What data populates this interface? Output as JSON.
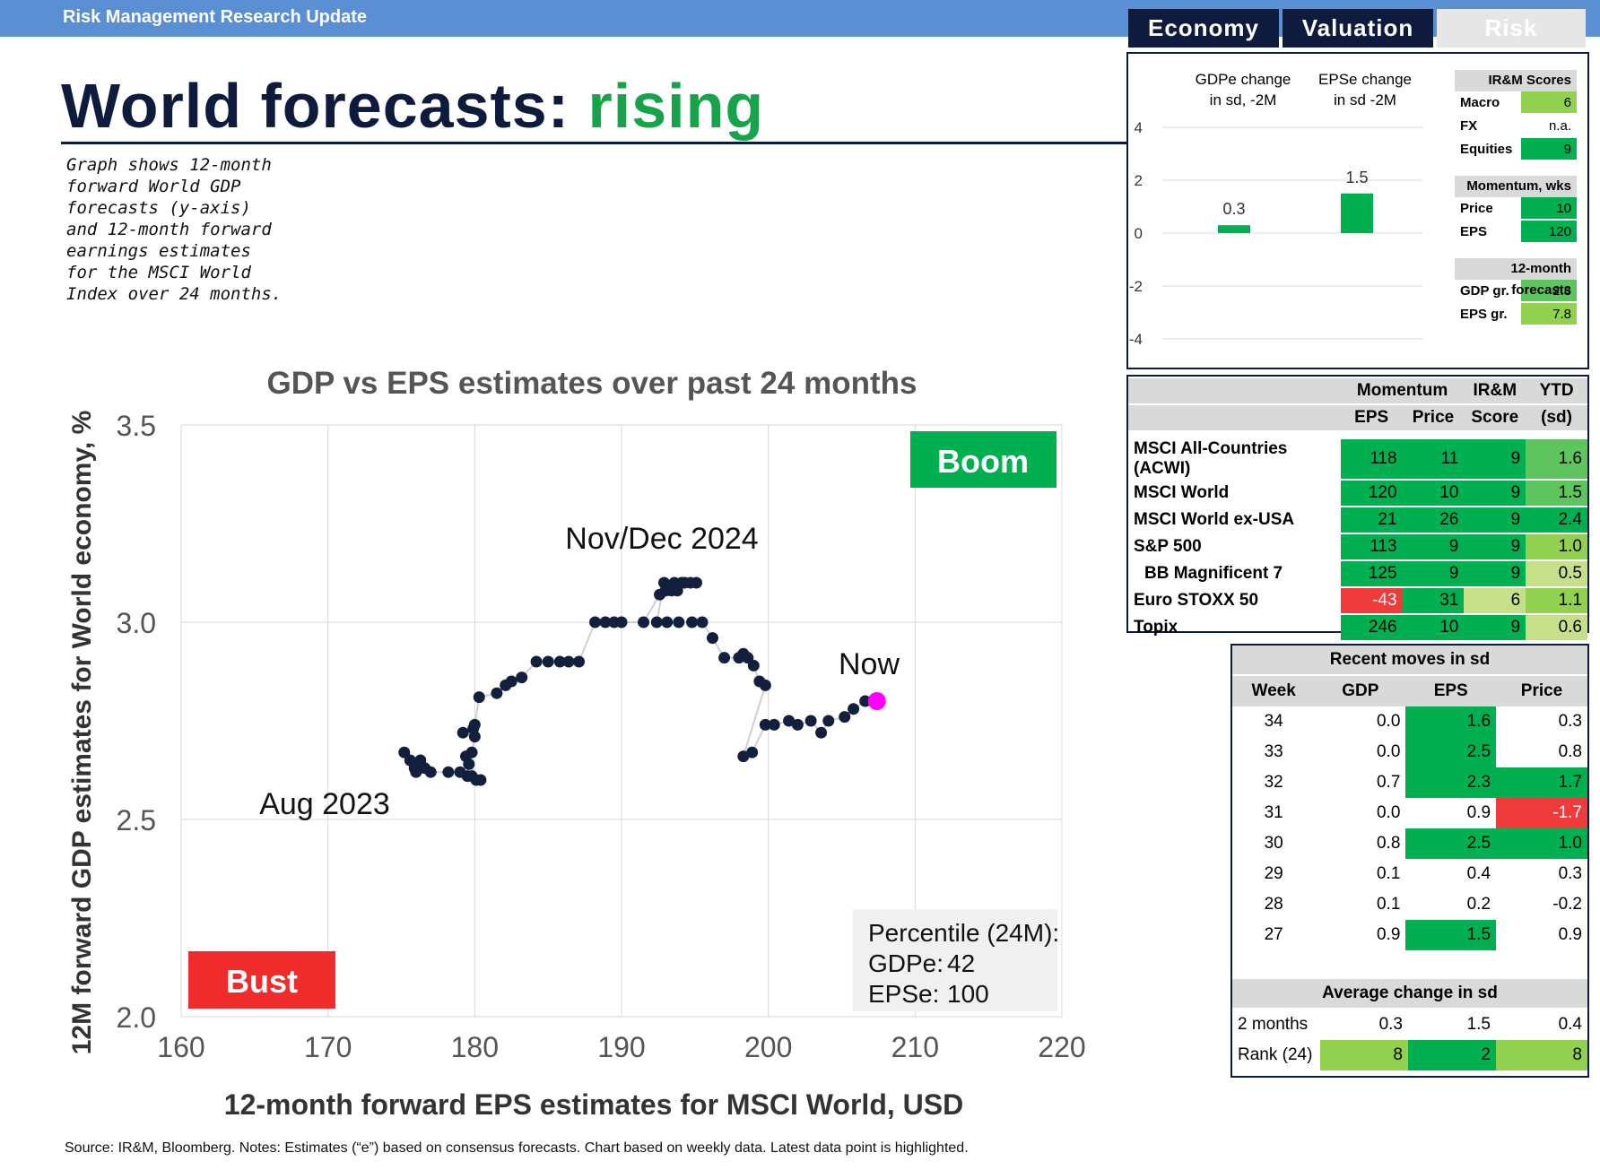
{
  "header": {
    "title": "Risk Management Research Update"
  },
  "page_title": {
    "main": "World forecasts: ",
    "highlight": "rising"
  },
  "description": "Graph shows 12-month forward World GDP forecasts (y-axis) and 12-month forward earnings estimates for the MSCI World Index over 24 months.",
  "tabs": [
    {
      "label": "Economy",
      "state": "active"
    },
    {
      "label": "Valuation",
      "state": "active"
    },
    {
      "label": "Risk",
      "state": "inactive"
    }
  ],
  "change_panel": {
    "gdp_label_1": "GDPe change",
    "gdp_label_2": "in sd, -2M",
    "eps_label_1": "EPSe change",
    "eps_label_2": "in sd -2M"
  },
  "scores": {
    "irm_header": "IR&M Scores",
    "irm_rows": [
      {
        "label": "Macro",
        "value": "6",
        "color": "#92d050"
      },
      {
        "label": "FX",
        "value": "n.a.",
        "color": "#ffffff"
      },
      {
        "label": "Equities",
        "value": "9",
        "color": "#00b050"
      }
    ],
    "momentum_header": "Momentum, wks",
    "momentum_rows": [
      {
        "label": "Price",
        "value": "10",
        "color": "#00b050"
      },
      {
        "label": "EPS",
        "value": "120",
        "color": "#00b050"
      }
    ],
    "forecast_header": "12-month forecasts",
    "forecast_rows": [
      {
        "label": "GDP gr.",
        "value": "2.8",
        "color": "#5ec45e"
      },
      {
        "label": "EPS gr.",
        "value": "7.8",
        "color": "#92d050"
      }
    ]
  },
  "market_table": {
    "group_momentum": "Momentum",
    "group_irm": "IR&M",
    "group_ytd": "YTD",
    "col_eps": "EPS",
    "col_price": "Price",
    "col_score": "Score",
    "col_sd": "(sd)",
    "rows": [
      {
        "name": "MSCI All-Countries (ACWI)",
        "eps": "118",
        "price": "11",
        "score": "9",
        "ytd": "1.6"
      },
      {
        "name": "MSCI World",
        "eps": "120",
        "price": "10",
        "score": "9",
        "ytd": "1.5"
      },
      {
        "name": "MSCI World ex-USA",
        "eps": "21",
        "price": "26",
        "score": "9",
        "ytd": "2.4"
      },
      {
        "name": "S&P 500",
        "eps": "113",
        "price": "9",
        "score": "9",
        "ytd": "1.0"
      },
      {
        "name": "BB Magnificent 7",
        "eps": "125",
        "price": "9",
        "score": "9",
        "ytd": "0.5"
      },
      {
        "name": "Euro STOXX 50",
        "eps": "-43",
        "price": "31",
        "score": "6",
        "ytd": "1.1"
      },
      {
        "name": "Topix",
        "eps": "246",
        "price": "10",
        "score": "9",
        "ytd": "0.6"
      }
    ]
  },
  "recent_moves": {
    "title": "Recent moves in sd",
    "headers": [
      "Week",
      "GDP",
      "EPS",
      "Price"
    ],
    "rows": [
      {
        "week": "34",
        "gdp": "0.0",
        "eps": "1.6",
        "price": "0.3"
      },
      {
        "week": "33",
        "gdp": "0.0",
        "eps": "2.5",
        "price": "0.8"
      },
      {
        "week": "32",
        "gdp": "0.7",
        "eps": "2.3",
        "price": "1.7"
      },
      {
        "week": "31",
        "gdp": "0.0",
        "eps": "0.9",
        "price": "-1.7"
      },
      {
        "week": "30",
        "gdp": "0.8",
        "eps": "2.5",
        "price": "1.0"
      },
      {
        "week": "29",
        "gdp": "0.1",
        "eps": "0.4",
        "price": "0.3"
      },
      {
        "week": "28",
        "gdp": "0.1",
        "eps": "0.2",
        "price": "-0.2"
      },
      {
        "week": "27",
        "gdp": "0.9",
        "eps": "1.5",
        "price": "0.9"
      }
    ],
    "avg_title": "Average change in sd",
    "avg_rows": [
      {
        "label": "2 months",
        "gdp": "0.3",
        "eps": "1.5",
        "price": "0.4"
      },
      {
        "label": "Rank (24)",
        "gdp": "8",
        "eps": "2",
        "price": "8"
      }
    ]
  },
  "footer": "Source: IR&M, Bloomberg. Notes: Estimates (“e”) based on consensus forecasts. Chart based on weekly data. Latest data point is highlighted.",
  "chart_data": [
    {
      "type": "bar",
      "categories": [
        "GDPe change in sd, -2M",
        "EPSe change in sd -2M"
      ],
      "values": [
        0.3,
        1.5
      ],
      "data_labels": [
        "0.3",
        "1.5"
      ],
      "ylim": [
        -4,
        4
      ],
      "yticks": [
        4,
        2,
        0,
        -2,
        -4
      ],
      "ytick_labels": [
        "4",
        "2",
        "0",
        "-2",
        "-4"
      ]
    },
    {
      "type": "scatter",
      "title": "GDP vs EPS estimates over past 24 months",
      "xlabel": "12-month forward EPS estimates for MSCI World, USD",
      "ylabel": "12M forward GDP estimates for World economy, %",
      "xlim": [
        160,
        220
      ],
      "ylim": [
        2.0,
        3.5
      ],
      "xticks": [
        160,
        170,
        180,
        190,
        200,
        210,
        220
      ],
      "yticks": [
        2.0,
        2.5,
        3.0,
        3.5
      ],
      "xtick_labels": [
        "160",
        "170",
        "180",
        "190",
        "200",
        "210",
        "220"
      ],
      "ytick_labels": [
        "2.0",
        "2.5",
        "3.0",
        "3.5"
      ],
      "x": [
        175.2,
        175.6,
        175.9,
        176.0,
        176.3,
        176.6,
        177.0,
        178.2,
        179.0,
        179.5,
        179.8,
        180.1,
        180.4,
        179.6,
        179.4,
        179.8,
        180.0,
        179.2,
        179.9,
        180.0,
        180.3,
        181.5,
        182.1,
        182.5,
        183.2,
        184.2,
        185.0,
        185.8,
        186.4,
        187.1,
        188.2,
        188.9,
        189.5,
        190.0,
        191.5,
        192.6,
        193.0,
        193.4,
        193.8,
        194.1,
        194.7,
        195.1,
        194.3,
        193.6,
        192.9,
        192.4,
        193.1,
        193.9,
        194.8,
        195.5,
        196.2,
        197.0,
        198.0,
        198.6,
        198.3,
        199.0,
        199.4,
        199.8,
        198.3,
        198.9,
        199.8,
        200.4,
        201.4,
        202.0,
        202.9,
        203.6,
        204.1,
        205.2,
        205.8,
        206.6,
        207.4
      ],
      "y": [
        2.67,
        2.65,
        2.63,
        2.62,
        2.65,
        2.63,
        2.62,
        2.62,
        2.62,
        2.61,
        2.61,
        2.6,
        2.6,
        2.64,
        2.66,
        2.67,
        2.71,
        2.72,
        2.73,
        2.74,
        2.81,
        2.82,
        2.84,
        2.85,
        2.86,
        2.9,
        2.9,
        2.9,
        2.9,
        2.9,
        3.0,
        3.0,
        3.0,
        3.0,
        3.0,
        3.07,
        3.08,
        3.08,
        3.08,
        3.1,
        3.1,
        3.1,
        3.1,
        3.1,
        3.1,
        3.0,
        3.0,
        3.0,
        3.0,
        3.0,
        2.96,
        2.91,
        2.91,
        2.91,
        2.92,
        2.89,
        2.85,
        2.84,
        2.66,
        2.67,
        2.74,
        2.74,
        2.75,
        2.74,
        2.75,
        2.72,
        2.75,
        2.76,
        2.78,
        2.8,
        2.8
      ],
      "highlight": {
        "x": 207.4,
        "y": 2.8,
        "label": "Now"
      },
      "annotations": [
        "Aug 2023",
        "Nov/Dec 2024",
        "Now"
      ],
      "quadrant_labels": {
        "top_right": "Boom",
        "bottom_left": "Bust"
      },
      "percentile_box": {
        "title": "Percentile (24M):",
        "gdp_label": "GDPe:",
        "gdp_value": "42",
        "eps_label": "EPSe:",
        "eps_value": "100"
      }
    }
  ]
}
